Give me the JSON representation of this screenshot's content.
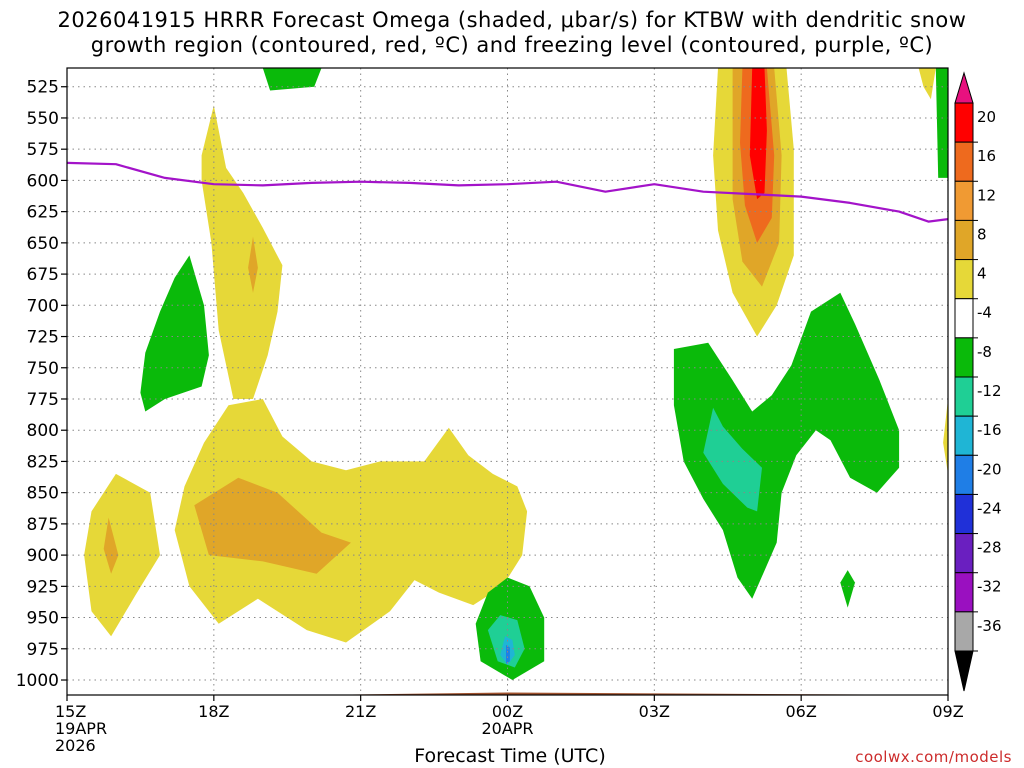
{
  "title_lines": [
    "2026041915 HRRR Forecast Omega (shaded, μbar/s) for KTBW with dendritic snow",
    "growth region (contoured, red, ºC) and freezing level (contoured, purple, ºC)"
  ],
  "xlabel": "Forecast Time (UTC)",
  "credit": "coolwx.com/models",
  "colors": {
    "freezing_level": "#a313c9",
    "surface": "#a0522d",
    "grid": "#888888"
  },
  "chart_data": {
    "type": "heatmap",
    "title": "2026041915 HRRR Forecast Omega (shaded, μbar/s) for KTBW",
    "x_unit": "hours from 15Z 19APR 2026",
    "xlim": [
      0,
      18
    ],
    "y_unit": "hPa",
    "ylim": [
      1012,
      510
    ],
    "y_ticks": [
      525,
      550,
      575,
      600,
      625,
      650,
      675,
      700,
      725,
      750,
      775,
      800,
      825,
      850,
      875,
      900,
      925,
      950,
      975,
      1000
    ],
    "x_ticks": [
      {
        "h": 0,
        "lines": [
          "15Z",
          "19APR",
          "2026"
        ]
      },
      {
        "h": 3,
        "lines": [
          "18Z"
        ]
      },
      {
        "h": 6,
        "lines": [
          "21Z"
        ]
      },
      {
        "h": 9,
        "lines": [
          "00Z",
          "20APR"
        ]
      },
      {
        "h": 12,
        "lines": [
          "03Z"
        ]
      },
      {
        "h": 15,
        "lines": [
          "06Z"
        ]
      },
      {
        "h": 18,
        "lines": [
          "09Z"
        ]
      }
    ],
    "colorbar": {
      "labels": [
        "20",
        "16",
        "12",
        "8",
        "4",
        "-4",
        "-8",
        "-12",
        "-16",
        "-20",
        "-24",
        "-28",
        "-32",
        "-36"
      ],
      "bands": [
        "#ff0000",
        "#ee6a1e",
        "#f09a33",
        "#e0a628",
        "#e6d838",
        "#ffffff",
        "#0aba0a",
        "#1fcf95",
        "#1fb5d5",
        "#1f7ee6",
        "#2030d8",
        "#6a1fc0",
        "#9a10c0",
        "#a8a8a8"
      ],
      "top_color": "#e8117f",
      "bottom_color": "#000000"
    },
    "freezing_level": {
      "name": "Freezing level (hPa)",
      "x": [
        0,
        1,
        2,
        3,
        4,
        5,
        6,
        7,
        8,
        9,
        10,
        11,
        12,
        13,
        14,
        15,
        16,
        17,
        17.6,
        18
      ],
      "values": [
        586,
        587,
        598,
        603,
        604,
        602,
        601,
        602,
        604,
        603,
        601,
        609,
        603,
        609,
        611,
        613,
        618,
        625,
        633,
        631
      ]
    },
    "shaded_regions": [
      {
        "name": "ascent-4to8-hour1-2",
        "level": 4,
        "color": "#e6d838",
        "points": [
          [
            0.5,
            865
          ],
          [
            1.0,
            835
          ],
          [
            1.7,
            850
          ],
          [
            1.9,
            900
          ],
          [
            1.4,
            932
          ],
          [
            0.9,
            965
          ],
          [
            0.5,
            945
          ],
          [
            0.35,
            900
          ]
        ]
      },
      {
        "name": "ascent-8to12-hour1",
        "level": 8,
        "color": "#e0a628",
        "points": [
          [
            0.85,
            870
          ],
          [
            1.05,
            900
          ],
          [
            0.9,
            915
          ],
          [
            0.75,
            895
          ]
        ]
      },
      {
        "name": "ascent-4to8-upper-18z",
        "level": 4,
        "color": "#e6d838",
        "points": [
          [
            2.75,
            580
          ],
          [
            3.0,
            540
          ],
          [
            3.25,
            590
          ],
          [
            3.6,
            610
          ],
          [
            4.0,
            638
          ],
          [
            4.4,
            668
          ],
          [
            4.3,
            705
          ],
          [
            4.1,
            740
          ],
          [
            3.8,
            775
          ],
          [
            3.4,
            775
          ],
          [
            3.1,
            720
          ],
          [
            2.95,
            650
          ],
          [
            2.75,
            600
          ]
        ]
      },
      {
        "name": "ascent-8to12-upper-18z",
        "level": 8,
        "color": "#e0a628",
        "points": [
          [
            3.8,
            645
          ],
          [
            3.9,
            670
          ],
          [
            3.8,
            690
          ],
          [
            3.7,
            670
          ]
        ]
      },
      {
        "name": "ascent-4to8-lower-day",
        "level": 4,
        "color": "#e6d838",
        "points": [
          [
            3.3,
            780
          ],
          [
            4.0,
            775
          ],
          [
            4.4,
            805
          ],
          [
            5.0,
            825
          ],
          [
            5.7,
            832
          ],
          [
            6.4,
            825
          ],
          [
            7.3,
            825
          ],
          [
            7.8,
            798
          ],
          [
            8.2,
            820
          ],
          [
            8.7,
            835
          ],
          [
            9.2,
            845
          ],
          [
            9.4,
            865
          ],
          [
            9.3,
            900
          ],
          [
            8.9,
            925
          ],
          [
            8.3,
            940
          ],
          [
            7.6,
            930
          ],
          [
            7.1,
            920
          ],
          [
            6.6,
            945
          ],
          [
            5.7,
            970
          ],
          [
            4.9,
            960
          ],
          [
            3.9,
            935
          ],
          [
            3.1,
            955
          ],
          [
            2.5,
            925
          ],
          [
            2.2,
            880
          ],
          [
            2.4,
            845
          ],
          [
            2.8,
            810
          ]
        ]
      },
      {
        "name": "ascent-8to12-lower-day",
        "level": 8,
        "color": "#e0a628",
        "points": [
          [
            2.6,
            860
          ],
          [
            3.5,
            838
          ],
          [
            4.3,
            850
          ],
          [
            5.2,
            882
          ],
          [
            5.8,
            890
          ],
          [
            5.1,
            915
          ],
          [
            4.0,
            905
          ],
          [
            2.9,
            900
          ]
        ]
      },
      {
        "name": "ascent-4to8-05z",
        "level": 4,
        "color": "#e6d838",
        "points": [
          [
            13.3,
            510
          ],
          [
            14.7,
            510
          ],
          [
            14.85,
            575
          ],
          [
            14.85,
            660
          ],
          [
            14.5,
            700
          ],
          [
            14.1,
            725
          ],
          [
            13.6,
            690
          ],
          [
            13.3,
            640
          ],
          [
            13.2,
            580
          ]
        ]
      },
      {
        "name": "ascent-8to12-05z",
        "level": 8,
        "color": "#e0a628",
        "points": [
          [
            13.6,
            510
          ],
          [
            14.45,
            510
          ],
          [
            14.6,
            580
          ],
          [
            14.55,
            650
          ],
          [
            14.2,
            685
          ],
          [
            13.8,
            665
          ],
          [
            13.6,
            615
          ]
        ]
      },
      {
        "name": "ascent-12to16-05z",
        "level": 12,
        "color": "#ee6a1e",
        "points": [
          [
            13.8,
            510
          ],
          [
            14.3,
            510
          ],
          [
            14.45,
            580
          ],
          [
            14.4,
            630
          ],
          [
            14.1,
            650
          ],
          [
            13.85,
            620
          ],
          [
            13.75,
            570
          ]
        ]
      },
      {
        "name": "ascent-16to20-05z",
        "level": 16,
        "color": "#ff0000",
        "points": [
          [
            14.0,
            510
          ],
          [
            14.25,
            510
          ],
          [
            14.3,
            560
          ],
          [
            14.25,
            610
          ],
          [
            14.1,
            615
          ],
          [
            13.95,
            580
          ]
        ]
      },
      {
        "name": "ascent-4to8-right-edge-top",
        "level": 4,
        "color": "#e6d838",
        "points": [
          [
            17.4,
            510
          ],
          [
            17.75,
            510
          ],
          [
            17.65,
            535
          ],
          [
            17.5,
            525
          ]
        ]
      },
      {
        "name": "ascent-4to8-right-edge-low",
        "level": 4,
        "color": "#e6d838",
        "points": [
          [
            18.0,
            775
          ],
          [
            18.0,
            835
          ],
          [
            17.9,
            810
          ]
        ]
      },
      {
        "name": "descent-4to8-upper-17z",
        "level": -4,
        "color": "#0aba0a",
        "points": [
          [
            4.0,
            510
          ],
          [
            5.2,
            510
          ],
          [
            5.05,
            525
          ],
          [
            4.15,
            528
          ]
        ]
      },
      {
        "name": "descent-4to8-1630z",
        "level": -4,
        "color": "#0aba0a",
        "points": [
          [
            1.5,
            770
          ],
          [
            1.6,
            738
          ],
          [
            1.9,
            705
          ],
          [
            2.2,
            678
          ],
          [
            2.5,
            660
          ],
          [
            2.8,
            700
          ],
          [
            2.9,
            740
          ],
          [
            2.75,
            765
          ],
          [
            2.0,
            775
          ],
          [
            1.6,
            785
          ]
        ]
      },
      {
        "name": "descent-4to8-right",
        "level": -4,
        "color": "#0aba0a",
        "points": [
          [
            12.4,
            735
          ],
          [
            13.1,
            730
          ],
          [
            13.6,
            760
          ],
          [
            14.0,
            785
          ],
          [
            14.4,
            772
          ],
          [
            14.8,
            748
          ],
          [
            15.2,
            705
          ],
          [
            15.8,
            690
          ],
          [
            16.1,
            715
          ],
          [
            16.6,
            760
          ],
          [
            17.0,
            800
          ],
          [
            17.0,
            830
          ],
          [
            16.55,
            850
          ],
          [
            16.0,
            838
          ],
          [
            15.6,
            808
          ],
          [
            15.3,
            800
          ],
          [
            14.9,
            820
          ],
          [
            14.6,
            850
          ],
          [
            14.5,
            890
          ],
          [
            14.0,
            935
          ],
          [
            13.7,
            918
          ],
          [
            13.4,
            880
          ],
          [
            13.0,
            855
          ],
          [
            12.6,
            825
          ],
          [
            12.4,
            780
          ]
        ]
      },
      {
        "name": "descent-8to12-right",
        "level": -8,
        "color": "#1fcf95",
        "points": [
          [
            13.0,
            818
          ],
          [
            13.2,
            782
          ],
          [
            13.4,
            797
          ],
          [
            13.8,
            815
          ],
          [
            14.2,
            830
          ],
          [
            14.1,
            865
          ],
          [
            13.9,
            862
          ],
          [
            13.4,
            843
          ]
        ]
      },
      {
        "name": "descent-4to8-0730z",
        "level": -4,
        "color": "#0aba0a",
        "points": [
          [
            15.8,
            922
          ],
          [
            15.95,
            912
          ],
          [
            16.1,
            922
          ],
          [
            15.95,
            942
          ]
        ]
      },
      {
        "name": "descent-4to8-right-edge",
        "level": -4,
        "color": "#0aba0a",
        "points": [
          [
            17.75,
            510
          ],
          [
            18.0,
            510
          ],
          [
            18.0,
            598
          ],
          [
            17.8,
            598
          ]
        ]
      },
      {
        "name": "descent-4to8-00z",
        "level": -4,
        "color": "#0aba0a",
        "points": [
          [
            9.0,
            918
          ],
          [
            9.45,
            925
          ],
          [
            9.75,
            950
          ],
          [
            9.75,
            985
          ],
          [
            9.1,
            1000
          ],
          [
            8.45,
            985
          ],
          [
            8.35,
            955
          ],
          [
            8.6,
            930
          ]
        ]
      },
      {
        "name": "descent-8to12-00z",
        "level": -8,
        "color": "#1fcf95",
        "points": [
          [
            8.85,
            948
          ],
          [
            9.2,
            952
          ],
          [
            9.35,
            975
          ],
          [
            9.15,
            990
          ],
          [
            8.8,
            985
          ],
          [
            8.6,
            960
          ]
        ]
      },
      {
        "name": "descent-12to16-00z",
        "level": -12,
        "color": "#1fb5d5",
        "points": [
          [
            8.95,
            965
          ],
          [
            9.1,
            968
          ],
          [
            9.15,
            980
          ],
          [
            9.0,
            988
          ],
          [
            8.85,
            980
          ]
        ]
      },
      {
        "name": "descent-16to20-00z",
        "level": -16,
        "color": "#1f7ee6",
        "points": [
          [
            8.97,
            972
          ],
          [
            9.05,
            974
          ],
          [
            9.05,
            985
          ],
          [
            8.97,
            987
          ]
        ]
      }
    ],
    "surface": {
      "name": "surface pressure (hPa)",
      "x": [
        0,
        5,
        9,
        18
      ],
      "values": [
        1012,
        1012,
        1010,
        1012
      ]
    }
  }
}
